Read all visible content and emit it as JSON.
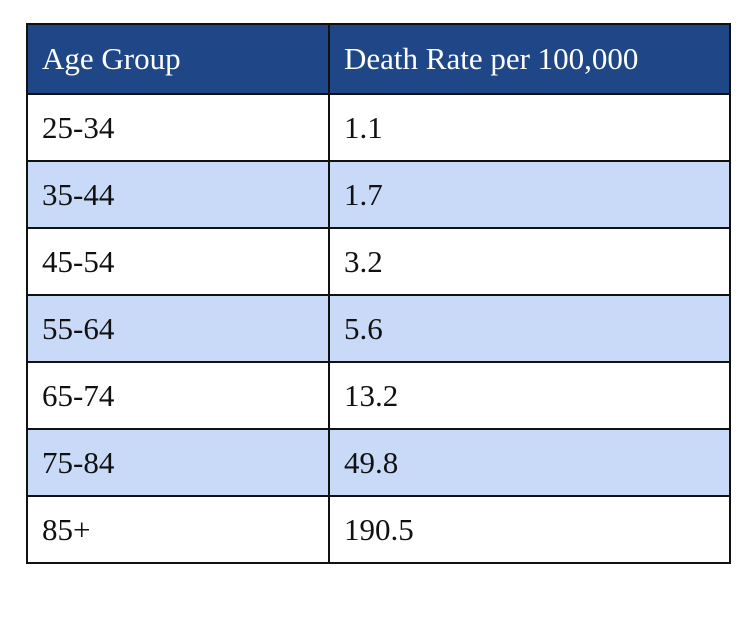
{
  "chart_data": {
    "type": "table",
    "columns": [
      "Age Group",
      "Death Rate per 100,000"
    ],
    "rows": [
      [
        "25-34",
        "1.1"
      ],
      [
        "35-44",
        "1.7"
      ],
      [
        "45-54",
        "3.2"
      ],
      [
        "55-64",
        "5.6"
      ],
      [
        "65-74",
        "13.2"
      ],
      [
        "75-84",
        "49.8"
      ],
      [
        "85+",
        "190.5"
      ]
    ],
    "categories": [
      "25-34",
      "35-44",
      "45-54",
      "55-64",
      "65-74",
      "75-84",
      "85+"
    ],
    "values": [
      1.1,
      1.7,
      3.2,
      5.6,
      13.2,
      49.8,
      190.5
    ]
  },
  "colors": {
    "header_background": "#1f4788",
    "header_text": "#ffffff",
    "band_row_background": "#c9daf8",
    "plain_row_background": "#ffffff",
    "border": "#111111"
  }
}
